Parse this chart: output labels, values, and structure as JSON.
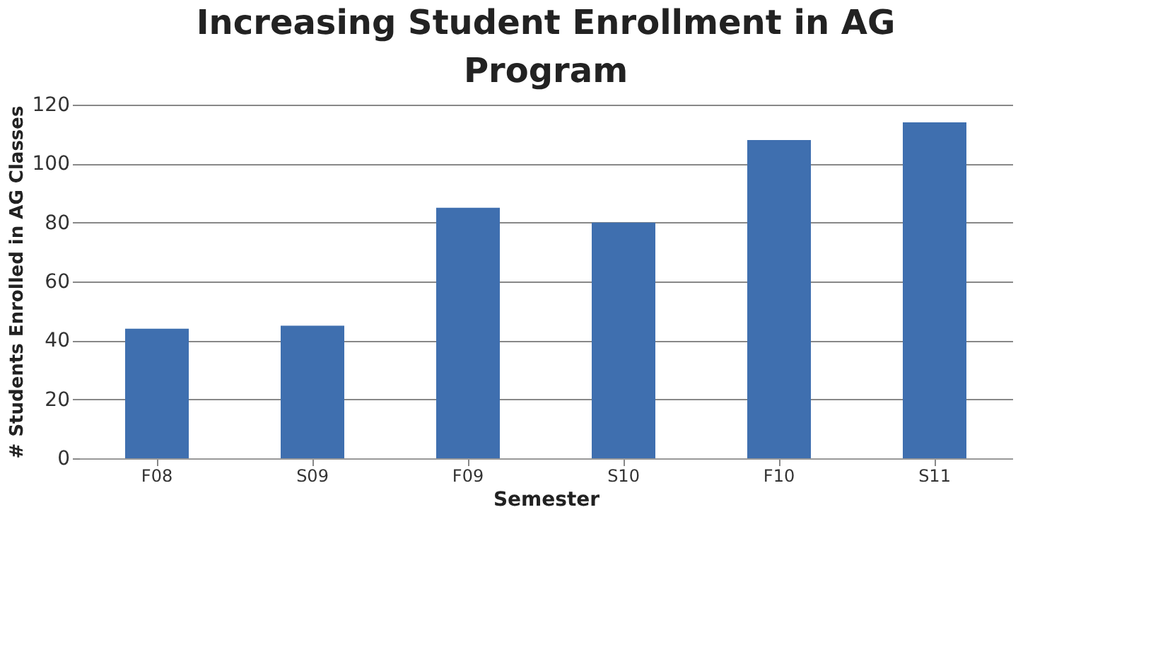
{
  "chart_data": {
    "type": "bar",
    "title": "Increasing Student Enrollment in AG Program",
    "xlabel": "Semester",
    "ylabel": "# Students Enrolled in AG Classes",
    "categories": [
      "F08",
      "S09",
      "F09",
      "S10",
      "F10",
      "S11"
    ],
    "values": [
      44,
      45,
      85,
      80,
      108,
      114
    ],
    "color": "#3f6faf",
    "ylim": [
      0,
      120
    ],
    "yticks": [
      0,
      20,
      40,
      60,
      80,
      100,
      120
    ],
    "grid": "y"
  }
}
